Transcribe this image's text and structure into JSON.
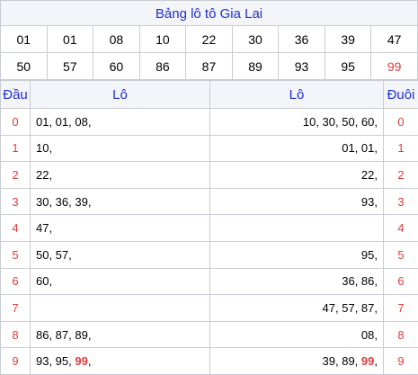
{
  "title": "Bảng lô tô Gia Lai",
  "numbers_row1": [
    "01",
    "01",
    "08",
    "10",
    "22",
    "30",
    "36",
    "39",
    "47"
  ],
  "numbers_row2": [
    "50",
    "57",
    "60",
    "86",
    "87",
    "89",
    "93",
    "95",
    "99"
  ],
  "headers": {
    "dau": "Đầu",
    "lo_left": "Lô",
    "lo_right": "Lô",
    "duoi": "Đuôi"
  },
  "rows": [
    {
      "dau": "0",
      "left": "01, 01, 08,",
      "right": "10, 30, 50, 60,",
      "duoi": "0"
    },
    {
      "dau": "1",
      "left": "10,",
      "right": "01, 01,",
      "duoi": "1"
    },
    {
      "dau": "2",
      "left": "22,",
      "right": "22,",
      "duoi": "2"
    },
    {
      "dau": "3",
      "left": "30, 36, 39,",
      "right": "93,",
      "duoi": "3"
    },
    {
      "dau": "4",
      "left": "47,",
      "right": "",
      "duoi": "4"
    },
    {
      "dau": "5",
      "left": "50, 57,",
      "right": "95,",
      "duoi": "5"
    },
    {
      "dau": "6",
      "left": "60,",
      "right": "36, 86,",
      "duoi": "6"
    },
    {
      "dau": "7",
      "left": "",
      "right": "47, 57, 87,",
      "duoi": "7"
    },
    {
      "dau": "8",
      "left": "86, 87, 89,",
      "right": "08,",
      "duoi": "8"
    },
    {
      "dau": "9",
      "left_prefix": "93, 95, ",
      "left_hi": "99",
      "left_suffix": ",",
      "right_prefix": "39, 89, ",
      "right_hi": "99",
      "right_suffix": ",",
      "duoi": "9"
    }
  ],
  "colors": {
    "accent": "#1f2fd6",
    "red": "#e23b3b",
    "header_bg": "#f3f5f9",
    "border": "#c9ccd2"
  }
}
